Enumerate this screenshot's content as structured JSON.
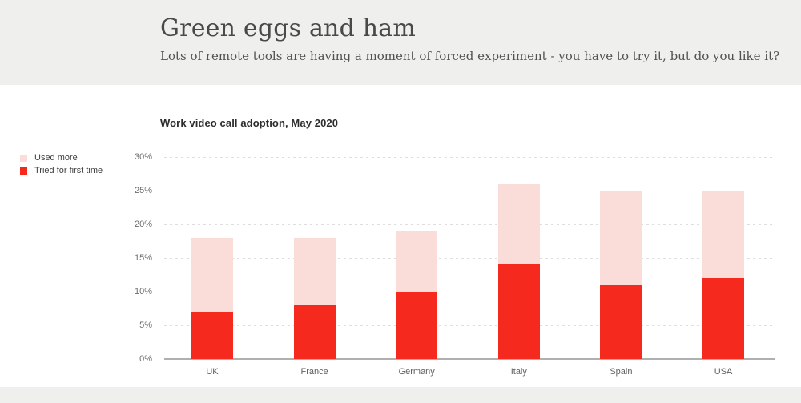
{
  "header": {
    "title": "Green eggs and ham",
    "subtitle": "Lots of remote tools are having a moment of forced experiment - you have to try it, but do you like it?"
  },
  "chart": {
    "title": "Work video call adoption, May 2020"
  },
  "legend": {
    "items": [
      {
        "label": "Used more",
        "color": "#fadcd8"
      },
      {
        "label": "Tried for first time",
        "color": "#f5291d"
      }
    ]
  },
  "chart_data": {
    "type": "bar",
    "stacked": true,
    "title": "Work video call adoption, May 2020",
    "categories": [
      "UK",
      "France",
      "Germany",
      "Italy",
      "Spain",
      "USA"
    ],
    "series": [
      {
        "name": "Tried for first time",
        "values": [
          7,
          8,
          10,
          14,
          11,
          12
        ],
        "color": "#f5291d"
      },
      {
        "name": "Used more",
        "values": [
          11,
          10,
          9,
          12,
          14,
          13
        ],
        "color": "#fadcd8"
      }
    ],
    "stack_totals": [
      18,
      18,
      19,
      26,
      25,
      25
    ],
    "xlabel": "",
    "ylabel": "",
    "ylim": [
      0,
      30
    ],
    "ytick_values": [
      0,
      5,
      10,
      15,
      20,
      25,
      30
    ],
    "ytick_labels": [
      "0%",
      "5%",
      "10%",
      "15%",
      "20%",
      "25%",
      "30%"
    ],
    "grid": "horizontal-dashed",
    "legend_position": "top-left"
  },
  "colors": {
    "header_bg": "#efefed",
    "footer_bg": "#efefed",
    "bar_tried": "#f5291d",
    "bar_used": "#fadcd8",
    "gridline": "#dedede",
    "axis_line": "#b0b0b0"
  }
}
